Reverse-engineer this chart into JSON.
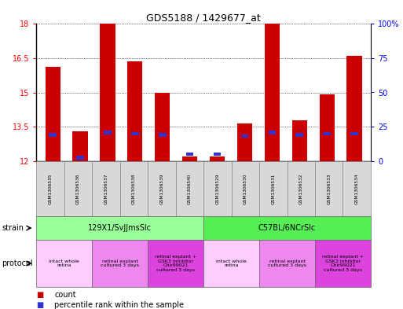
{
  "title": "GDS5188 / 1429677_at",
  "samples": [
    "GSM1306535",
    "GSM1306536",
    "GSM1306537",
    "GSM1306538",
    "GSM1306539",
    "GSM1306540",
    "GSM1306529",
    "GSM1306530",
    "GSM1306531",
    "GSM1306532",
    "GSM1306533",
    "GSM1306534"
  ],
  "count_values": [
    16.1,
    13.3,
    18.0,
    16.35,
    15.0,
    12.2,
    12.2,
    13.65,
    18.0,
    13.8,
    14.9,
    16.6
  ],
  "percentile_values": [
    13.15,
    12.15,
    13.25,
    13.2,
    13.15,
    12.3,
    12.3,
    13.1,
    13.25,
    13.15,
    13.2,
    13.2
  ],
  "bar_bottom": 12.0,
  "ylim": [
    12,
    18
  ],
  "y_ticks": [
    12,
    13.5,
    15,
    16.5,
    18
  ],
  "right_ylim": [
    0,
    100
  ],
  "right_yticks": [
    0,
    25,
    50,
    75,
    100
  ],
  "right_yticklabels": [
    "0",
    "25",
    "50",
    "75",
    "100%"
  ],
  "bar_color": "#cc0000",
  "percentile_color": "#3333cc",
  "strain_groups": [
    {
      "label": "129X1/SvJJmsSlc",
      "start": 0,
      "end": 5,
      "color": "#99ff99"
    },
    {
      "label": "C57BL/6NCrSlc",
      "start": 6,
      "end": 11,
      "color": "#55ee55"
    }
  ],
  "protocol_groups": [
    {
      "label": "intact whole\nretina",
      "start": 0,
      "end": 1,
      "color": "#ffccff"
    },
    {
      "label": "retinal explant\ncultured 3 days",
      "start": 2,
      "end": 3,
      "color": "#ee88ee"
    },
    {
      "label": "retinal explant +\nGSK3 inhibitor\nChir99021\ncultured 3 days",
      "start": 4,
      "end": 5,
      "color": "#dd44dd"
    },
    {
      "label": "intact whole\nretina",
      "start": 6,
      "end": 7,
      "color": "#ffccff"
    },
    {
      "label": "retinal explant\ncultured 3 days",
      "start": 8,
      "end": 9,
      "color": "#ee88ee"
    },
    {
      "label": "retinal explant +\nGSK3 inhibitor\nChir99021\ncultured 3 days",
      "start": 10,
      "end": 11,
      "color": "#dd44dd"
    }
  ],
  "strain_label": "strain",
  "protocol_label": "protocol",
  "legend_count_label": "count",
  "legend_percentile_label": "percentile rank within the sample",
  "bar_width": 0.55,
  "fig_width": 5.13,
  "fig_height": 3.93,
  "dpi": 100
}
